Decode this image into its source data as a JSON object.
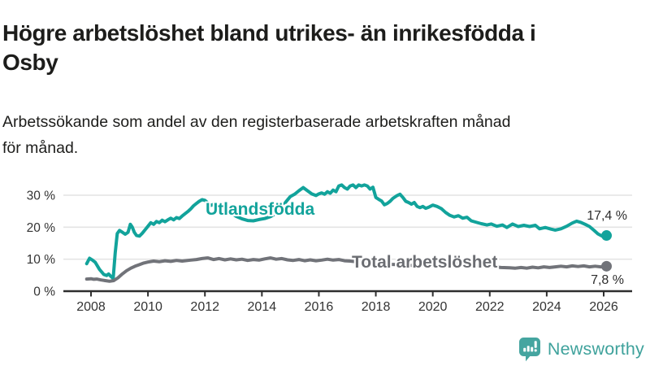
{
  "header": {
    "title": "Högre arbetslöshet bland utrikes- än inrikesfödda i Osby",
    "title_lines": [
      "Högre arbetslöshet bland utrikes- än inrikesfödda i",
      "Osby"
    ],
    "subtitle": "Arbetssökande som andel av den registerbaserade arbetskraften månad för månad.",
    "subtitle_lines": [
      "Arbetssökande som andel av den registerbaserade arbetskraften månad",
      "för månad."
    ]
  },
  "branding": {
    "logo_text": "Newsworthy",
    "logo_color": "#3fa29c",
    "logo_icon": "bar-chart-speech-bubble"
  },
  "chart_data": {
    "type": "line",
    "title": "Högre arbetslöshet bland utrikes- än inrikesfödda i Osby",
    "subtitle": "Arbetssökande som andel av den registerbaserade arbetskraften månad för månad.",
    "unit": "%",
    "xlabel": "",
    "ylabel": "",
    "grid": true,
    "xlim": [
      2007.0,
      2027.0
    ],
    "ylim": [
      0,
      35
    ],
    "x_ticks": [
      "2008",
      "2010",
      "2012",
      "2014",
      "2016",
      "2018",
      "2020",
      "2022",
      "2024",
      "2026"
    ],
    "x_tick_values": [
      2008,
      2010,
      2012,
      2014,
      2016,
      2018,
      2020,
      2022,
      2024,
      2026
    ],
    "y_ticks": [
      {
        "value": 0,
        "label": "0 %"
      },
      {
        "value": 10,
        "label": "10 %"
      },
      {
        "value": 20,
        "label": "20 %"
      },
      {
        "value": 30,
        "label": "30 %"
      }
    ],
    "axis_color": "#2e2e2e",
    "grid_color": "#e4e4e4",
    "tick_text_color": "#333333",
    "series": [
      {
        "name": "Utlandsfödda",
        "color": "#12a39b",
        "end_label": "17,4 %",
        "end_value": 17.4,
        "points": [
          [
            2007.85,
            8.6
          ],
          [
            2007.95,
            10.3
          ],
          [
            2008.05,
            9.7
          ],
          [
            2008.15,
            9.0
          ],
          [
            2008.3,
            6.8
          ],
          [
            2008.45,
            5.2
          ],
          [
            2008.55,
            4.9
          ],
          [
            2008.62,
            5.4
          ],
          [
            2008.7,
            4.6
          ],
          [
            2008.78,
            4.0
          ],
          [
            2008.85,
            12.0
          ],
          [
            2008.92,
            18.0
          ],
          [
            2009.0,
            19.0
          ],
          [
            2009.1,
            18.4
          ],
          [
            2009.2,
            17.8
          ],
          [
            2009.3,
            18.4
          ],
          [
            2009.38,
            20.9
          ],
          [
            2009.45,
            20.0
          ],
          [
            2009.52,
            18.4
          ],
          [
            2009.6,
            17.4
          ],
          [
            2009.7,
            17.2
          ],
          [
            2009.8,
            18.1
          ],
          [
            2009.9,
            19.2
          ],
          [
            2010.0,
            20.3
          ],
          [
            2010.1,
            21.4
          ],
          [
            2010.2,
            20.9
          ],
          [
            2010.3,
            21.8
          ],
          [
            2010.4,
            21.4
          ],
          [
            2010.5,
            22.2
          ],
          [
            2010.6,
            21.7
          ],
          [
            2010.7,
            22.3
          ],
          [
            2010.8,
            22.8
          ],
          [
            2010.9,
            22.3
          ],
          [
            2011.0,
            23.0
          ],
          [
            2011.1,
            22.7
          ],
          [
            2011.2,
            23.5
          ],
          [
            2011.3,
            24.2
          ],
          [
            2011.4,
            24.9
          ],
          [
            2011.5,
            25.7
          ],
          [
            2011.6,
            26.7
          ],
          [
            2011.7,
            27.4
          ],
          [
            2011.8,
            28.1
          ],
          [
            2011.9,
            28.6
          ],
          [
            2012.0,
            28.4
          ],
          [
            2012.1,
            27.6
          ],
          [
            2012.2,
            26.8
          ],
          [
            2012.35,
            27.3
          ],
          [
            2012.5,
            26.8
          ],
          [
            2012.7,
            25.8
          ],
          [
            2012.9,
            24.5
          ],
          [
            2013.1,
            23.4
          ],
          [
            2013.3,
            22.6
          ],
          [
            2013.5,
            22.1
          ],
          [
            2013.7,
            22.0
          ],
          [
            2013.9,
            22.4
          ],
          [
            2014.1,
            22.7
          ],
          [
            2014.3,
            23.3
          ],
          [
            2014.5,
            24.4
          ],
          [
            2014.7,
            26.2
          ],
          [
            2014.85,
            28.0
          ],
          [
            2015.0,
            29.6
          ],
          [
            2015.15,
            30.3
          ],
          [
            2015.3,
            31.4
          ],
          [
            2015.45,
            32.4
          ],
          [
            2015.6,
            31.4
          ],
          [
            2015.75,
            30.4
          ],
          [
            2015.9,
            29.9
          ],
          [
            2016.0,
            30.4
          ],
          [
            2016.1,
            30.7
          ],
          [
            2016.2,
            30.3
          ],
          [
            2016.3,
            31.1
          ],
          [
            2016.4,
            30.6
          ],
          [
            2016.5,
            31.6
          ],
          [
            2016.6,
            31.1
          ],
          [
            2016.7,
            32.9
          ],
          [
            2016.8,
            33.2
          ],
          [
            2016.9,
            32.4
          ],
          [
            2017.0,
            31.9
          ],
          [
            2017.1,
            32.9
          ],
          [
            2017.2,
            33.2
          ],
          [
            2017.3,
            32.4
          ],
          [
            2017.4,
            33.2
          ],
          [
            2017.5,
            32.9
          ],
          [
            2017.6,
            33.2
          ],
          [
            2017.7,
            32.9
          ],
          [
            2017.8,
            31.9
          ],
          [
            2017.9,
            32.5
          ],
          [
            2018.0,
            29.3
          ],
          [
            2018.1,
            28.7
          ],
          [
            2018.2,
            28.2
          ],
          [
            2018.3,
            27.0
          ],
          [
            2018.4,
            27.4
          ],
          [
            2018.5,
            28.1
          ],
          [
            2018.6,
            29.0
          ],
          [
            2018.75,
            29.9
          ],
          [
            2018.85,
            30.3
          ],
          [
            2018.95,
            29.3
          ],
          [
            2019.05,
            28.1
          ],
          [
            2019.15,
            27.7
          ],
          [
            2019.25,
            27.2
          ],
          [
            2019.35,
            27.7
          ],
          [
            2019.45,
            26.5
          ],
          [
            2019.55,
            26.1
          ],
          [
            2019.65,
            26.5
          ],
          [
            2019.75,
            25.9
          ],
          [
            2019.85,
            26.2
          ],
          [
            2020.0,
            26.9
          ],
          [
            2020.15,
            26.5
          ],
          [
            2020.3,
            25.8
          ],
          [
            2020.45,
            24.6
          ],
          [
            2020.6,
            23.7
          ],
          [
            2020.75,
            23.2
          ],
          [
            2020.9,
            23.6
          ],
          [
            2021.05,
            22.8
          ],
          [
            2021.2,
            23.1
          ],
          [
            2021.35,
            22.0
          ],
          [
            2021.5,
            21.6
          ],
          [
            2021.7,
            21.1
          ],
          [
            2021.9,
            20.7
          ],
          [
            2022.05,
            21.0
          ],
          [
            2022.25,
            20.3
          ],
          [
            2022.45,
            20.7
          ],
          [
            2022.6,
            19.9
          ],
          [
            2022.8,
            21.0
          ],
          [
            2023.0,
            20.2
          ],
          [
            2023.2,
            20.6
          ],
          [
            2023.4,
            20.2
          ],
          [
            2023.6,
            20.6
          ],
          [
            2023.75,
            19.5
          ],
          [
            2023.95,
            19.9
          ],
          [
            2024.15,
            19.4
          ],
          [
            2024.3,
            19.1
          ],
          [
            2024.5,
            19.5
          ],
          [
            2024.7,
            20.3
          ],
          [
            2024.9,
            21.3
          ],
          [
            2025.05,
            21.9
          ],
          [
            2025.2,
            21.5
          ],
          [
            2025.35,
            20.9
          ],
          [
            2025.5,
            20.2
          ],
          [
            2025.65,
            19.1
          ],
          [
            2025.8,
            17.9
          ],
          [
            2025.95,
            17.2
          ],
          [
            2026.1,
            17.4
          ]
        ]
      },
      {
        "name": "Total arbetslöshet",
        "color": "#717379",
        "end_label": "7,8 %",
        "end_value": 7.8,
        "points": [
          [
            2007.85,
            3.8
          ],
          [
            2008.0,
            3.9
          ],
          [
            2008.1,
            3.7
          ],
          [
            2008.2,
            3.8
          ],
          [
            2008.35,
            3.5
          ],
          [
            2008.5,
            3.3
          ],
          [
            2008.65,
            3.1
          ],
          [
            2008.8,
            3.3
          ],
          [
            2008.95,
            4.2
          ],
          [
            2009.1,
            5.4
          ],
          [
            2009.25,
            6.4
          ],
          [
            2009.4,
            7.2
          ],
          [
            2009.55,
            7.8
          ],
          [
            2009.7,
            8.3
          ],
          [
            2009.85,
            8.8
          ],
          [
            2010.0,
            9.1
          ],
          [
            2010.2,
            9.4
          ],
          [
            2010.4,
            9.2
          ],
          [
            2010.6,
            9.5
          ],
          [
            2010.8,
            9.3
          ],
          [
            2011.0,
            9.6
          ],
          [
            2011.2,
            9.4
          ],
          [
            2011.5,
            9.7
          ],
          [
            2011.7,
            9.9
          ],
          [
            2011.9,
            10.2
          ],
          [
            2012.1,
            10.4
          ],
          [
            2012.3,
            9.9
          ],
          [
            2012.5,
            10.2
          ],
          [
            2012.7,
            9.8
          ],
          [
            2012.9,
            10.1
          ],
          [
            2013.1,
            9.8
          ],
          [
            2013.3,
            10.0
          ],
          [
            2013.5,
            9.6
          ],
          [
            2013.7,
            9.9
          ],
          [
            2013.9,
            9.7
          ],
          [
            2014.1,
            10.1
          ],
          [
            2014.3,
            10.4
          ],
          [
            2014.5,
            10.0
          ],
          [
            2014.7,
            10.2
          ],
          [
            2014.9,
            9.8
          ],
          [
            2015.1,
            9.6
          ],
          [
            2015.3,
            9.9
          ],
          [
            2015.5,
            9.5
          ],
          [
            2015.7,
            9.8
          ],
          [
            2015.9,
            9.5
          ],
          [
            2016.1,
            9.7
          ],
          [
            2016.3,
            10.0
          ],
          [
            2016.5,
            9.7
          ],
          [
            2016.7,
            9.9
          ],
          [
            2016.9,
            9.5
          ],
          [
            2017.1,
            9.4
          ],
          [
            2017.3,
            9.2
          ],
          [
            2017.6,
            9.0
          ],
          [
            2017.9,
            8.8
          ],
          [
            2018.2,
            8.6
          ],
          [
            2018.5,
            8.4
          ],
          [
            2018.8,
            8.3
          ],
          [
            2019.1,
            8.1
          ],
          [
            2019.4,
            8.0
          ],
          [
            2019.7,
            7.9
          ],
          [
            2020.0,
            8.2
          ],
          [
            2020.3,
            8.6
          ],
          [
            2020.6,
            8.8
          ],
          [
            2020.9,
            8.6
          ],
          [
            2021.2,
            8.4
          ],
          [
            2021.5,
            8.1
          ],
          [
            2021.8,
            7.8
          ],
          [
            2022.1,
            7.6
          ],
          [
            2022.4,
            7.4
          ],
          [
            2022.7,
            7.3
          ],
          [
            2022.9,
            7.2
          ],
          [
            2023.1,
            7.4
          ],
          [
            2023.3,
            7.2
          ],
          [
            2023.5,
            7.5
          ],
          [
            2023.7,
            7.3
          ],
          [
            2023.9,
            7.6
          ],
          [
            2024.1,
            7.4
          ],
          [
            2024.3,
            7.6
          ],
          [
            2024.5,
            7.8
          ],
          [
            2024.7,
            7.6
          ],
          [
            2024.9,
            7.9
          ],
          [
            2025.1,
            7.7
          ],
          [
            2025.3,
            7.9
          ],
          [
            2025.5,
            7.6
          ],
          [
            2025.7,
            7.8
          ],
          [
            2025.9,
            7.6
          ],
          [
            2026.1,
            7.8
          ]
        ]
      }
    ],
    "legend_position": "inline-labels"
  }
}
